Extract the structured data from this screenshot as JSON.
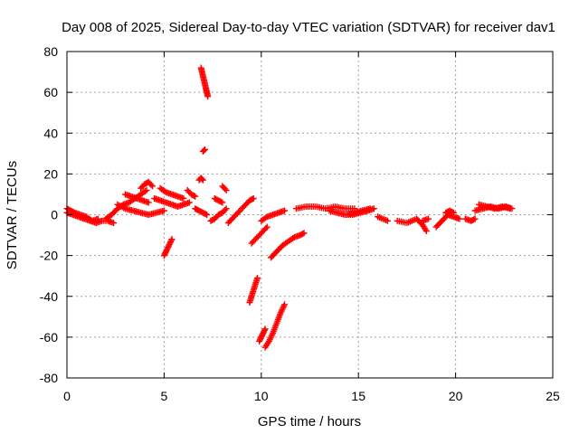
{
  "chart_data": {
    "type": "scatter",
    "title": "Day 008 of 2025, Sidereal Day-to-day VTEC variation (SDTVAR) for receiver dav1",
    "xlabel": "GPS time / hours",
    "ylabel": "SDTVAR / TECUs",
    "xlim": [
      0,
      25
    ],
    "ylim": [
      -80,
      80
    ],
    "xticks": [
      0,
      5,
      10,
      15,
      20,
      25
    ],
    "yticks": [
      -80,
      -60,
      -40,
      -20,
      0,
      20,
      40,
      60,
      80
    ],
    "grid": true,
    "marker": "+",
    "marker_color": "#ff0000",
    "series": [
      {
        "name": "dav1",
        "segments": [
          {
            "x": [
              0.0,
              0.3,
              0.6,
              0.9,
              1.2,
              1.5,
              1.8,
              2.1,
              2.4
            ],
            "y": [
              1,
              0,
              -1,
              -2,
              -3,
              -4,
              -3,
              -3,
              -4
            ]
          },
          {
            "x": [
              0.0,
              0.2,
              0.4,
              0.7,
              1.0,
              1.3,
              1.6
            ],
            "y": [
              3,
              2,
              1,
              0,
              -1,
              -3,
              -2
            ]
          },
          {
            "x": [
              2.0,
              2.3,
              2.6,
              2.9,
              3.2,
              3.5,
              3.8,
              4.1
            ],
            "y": [
              -2,
              0,
              3,
              5,
              6,
              8,
              10,
              12
            ]
          },
          {
            "x": [
              2.6,
              3.0,
              3.4,
              3.8,
              4.2,
              4.6,
              5.0
            ],
            "y": [
              5,
              3,
              2,
              1,
              0,
              1,
              2
            ]
          },
          {
            "x": [
              3.0,
              3.3,
              3.6,
              3.9,
              4.2
            ],
            "y": [
              10,
              9,
              8,
              7,
              6
            ]
          },
          {
            "x": [
              3.8,
              4.0,
              4.2,
              4.4
            ],
            "y": [
              13,
              15,
              16,
              14
            ]
          },
          {
            "x": [
              4.5,
              4.8,
              5.1,
              5.4,
              5.7,
              6.0,
              6.3
            ],
            "y": [
              8,
              7,
              6,
              5,
              4,
              5,
              6
            ]
          },
          {
            "x": [
              4.8,
              5.1,
              5.4,
              5.7,
              6.0
            ],
            "y": [
              13,
              11,
              10,
              9,
              8
            ]
          },
          {
            "x": [
              5.0,
              5.1,
              5.2,
              5.3,
              5.4
            ],
            "y": [
              -20,
              -18,
              -16,
              -14,
              -12
            ]
          },
          {
            "x": [
              6.2,
              6.4,
              6.6
            ],
            "y": [
              12,
              10,
              9
            ]
          },
          {
            "x": [
              6.6,
              6.8,
              7.0,
              7.2
            ],
            "y": [
              3,
              2,
              1,
              0
            ]
          },
          {
            "x": [
              6.8,
              6.9,
              7.0
            ],
            "y": [
              17,
              18,
              17
            ]
          },
          {
            "x": [
              6.9,
              6.95,
              7.0,
              7.05,
              7.1,
              7.15,
              7.2,
              7.25
            ],
            "y": [
              72,
              70,
              68,
              66,
              64,
              62,
              60,
              58
            ]
          },
          {
            "x": [
              7.0,
              7.1
            ],
            "y": [
              31,
              32
            ]
          },
          {
            "x": [
              7.4,
              7.6,
              7.8,
              8.0,
              8.2
            ],
            "y": [
              -3,
              -2,
              0,
              1,
              3
            ]
          },
          {
            "x": [
              7.6,
              7.8,
              8.0
            ],
            "y": [
              8,
              7,
              6
            ]
          },
          {
            "x": [
              8.0,
              8.2
            ],
            "y": [
              14,
              12
            ]
          },
          {
            "x": [
              8.3,
              8.5,
              8.7,
              8.9
            ],
            "y": [
              -4,
              -2,
              0,
              2
            ]
          },
          {
            "x": [
              9.0,
              9.2,
              9.4,
              9.6
            ],
            "y": [
              3,
              5,
              7,
              8
            ]
          },
          {
            "x": [
              9.4,
              9.5,
              9.6,
              9.7,
              9.8
            ],
            "y": [
              -43,
              -40,
              -37,
              -34,
              -31
            ]
          },
          {
            "x": [
              9.5,
              9.7,
              9.9,
              10.1,
              10.3
            ],
            "y": [
              -14,
              -12,
              -10,
              -8,
              -6
            ]
          },
          {
            "x": [
              9.9,
              10.0,
              10.1,
              10.2
            ],
            "y": [
              -62,
              -60,
              -58,
              -56
            ]
          },
          {
            "x": [
              10.2,
              10.4,
              10.6,
              10.8,
              11.0,
              11.2
            ],
            "y": [
              -65,
              -62,
              -58,
              -53,
              -48,
              -44
            ]
          },
          {
            "x": [
              10.5,
              10.8,
              11.1,
              11.4,
              11.7,
              12.0,
              12.2
            ],
            "y": [
              -21,
              -18,
              -15,
              -13,
              -11,
              -10,
              -9
            ]
          },
          {
            "x": [
              10.0,
              10.3,
              10.6,
              10.9,
              11.2
            ],
            "y": [
              -3,
              -1,
              0,
              1,
              2
            ]
          },
          {
            "x": [
              11.8,
              12.3,
              12.8,
              13.3,
              13.8,
              14.3,
              14.8
            ],
            "y": [
              3,
              4,
              4,
              3,
              4,
              3,
              3
            ]
          },
          {
            "x": [
              13.5,
              13.9,
              14.3,
              14.7,
              15.1,
              15.5,
              15.8
            ],
            "y": [
              2,
              1,
              0,
              0,
              1,
              2,
              3
            ]
          },
          {
            "x": [
              14.4,
              14.8,
              15.2,
              15.6
            ],
            "y": [
              0,
              1,
              2,
              3
            ]
          },
          {
            "x": [
              16.0,
              16.5
            ],
            "y": [
              -1,
              -3
            ]
          },
          {
            "x": [
              17.0,
              17.5,
              18.0,
              18.3,
              18.5
            ],
            "y": [
              -3,
              -4,
              -2,
              -5,
              -8
            ]
          },
          {
            "x": [
              18.3,
              18.6
            ],
            "y": [
              -3,
              -2
            ]
          },
          {
            "x": [
              19.0,
              19.3,
              19.6,
              19.9,
              20.2
            ],
            "y": [
              -6,
              -3,
              0,
              -1,
              -2
            ]
          },
          {
            "x": [
              19.5,
              19.7,
              19.9
            ],
            "y": [
              1,
              2,
              1
            ]
          },
          {
            "x": [
              20.5,
              20.8,
              21.0
            ],
            "y": [
              -2,
              -3,
              -2
            ]
          },
          {
            "x": [
              21.0,
              21.4,
              21.8,
              22.2,
              22.6,
              22.9
            ],
            "y": [
              2,
              3,
              4,
              3,
              4,
              3
            ]
          },
          {
            "x": [
              21.2,
              21.6,
              22.0,
              22.4,
              22.8
            ],
            "y": [
              5,
              4,
              3,
              4,
              3
            ]
          }
        ]
      }
    ]
  }
}
